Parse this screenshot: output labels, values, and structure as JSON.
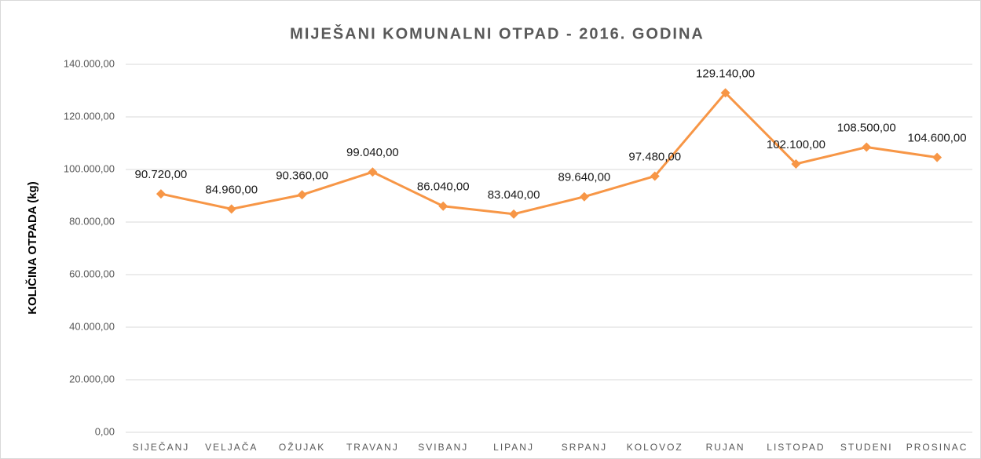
{
  "chart_data": {
    "type": "line",
    "title": "MIJEŠANI KOMUNALNI OTPAD - 2016. GODINA",
    "y_label": "KOLIČINA OTPADA (kg)",
    "categories": [
      "SIJEČANJ",
      "VELJAČA",
      "OŽUJAK",
      "TRAVANJ",
      "SVIBANJ",
      "LIPANJ",
      "SRPANJ",
      "KOLOVOZ",
      "RUJAN",
      "LISTOPAD",
      "STUDENI",
      "PROSINAC"
    ],
    "values": [
      90720,
      84960,
      90360,
      99040,
      86040,
      83040,
      89640,
      97480,
      129140,
      102100,
      108500,
      104600
    ],
    "value_labels": [
      "90.720,00",
      "84.960,00",
      "90.360,00",
      "99.040,00",
      "86.040,00",
      "83.040,00",
      "89.640,00",
      "97.480,00",
      "129.140,00",
      "102.100,00",
      "108.500,00",
      "104.600,00"
    ],
    "color": "#f79646",
    "ylim": [
      0,
      140000
    ],
    "yticks": [
      {
        "value": 0,
        "label": "0,00"
      },
      {
        "value": 20000,
        "label": "20.000,00"
      },
      {
        "value": 40000,
        "label": "40.000,00"
      },
      {
        "value": 60000,
        "label": "60.000,00"
      },
      {
        "value": 80000,
        "label": "80.000,00"
      },
      {
        "value": 100000,
        "label": "100.000,00"
      },
      {
        "value": 120000,
        "label": "120.000,00"
      },
      {
        "value": 140000,
        "label": "140.000,00"
      }
    ],
    "grid": true
  }
}
